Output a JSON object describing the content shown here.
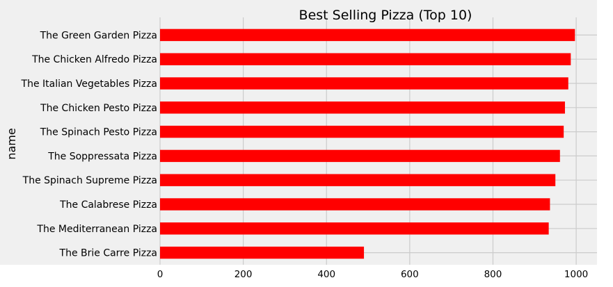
{
  "chart_data": {
    "type": "bar",
    "orientation": "horizontal",
    "title": "Best Selling Pizza (Top 10)",
    "xlabel": "",
    "ylabel": "name",
    "categories": [
      "The Brie Carre Pizza",
      "The Mediterranean Pizza",
      "The Calabrese Pizza",
      "The Spinach Supreme Pizza",
      "The Soppressata Pizza",
      "The Spinach Pesto Pizza",
      "The Chicken Pesto Pizza",
      "The Italian Vegetables Pizza",
      "The Chicken Alfredo Pizza",
      "The Green Garden Pizza"
    ],
    "values": [
      490,
      934,
      937,
      950,
      961,
      970,
      973,
      981,
      987,
      997
    ],
    "xlim": [
      0,
      1050
    ],
    "xticks": [
      0,
      200,
      400,
      600,
      800,
      1000
    ],
    "grid": true,
    "legend": "none",
    "bar_color": "#ff0000",
    "plot_background": "#f0f0f0",
    "grid_color": "#cbcbcb"
  }
}
